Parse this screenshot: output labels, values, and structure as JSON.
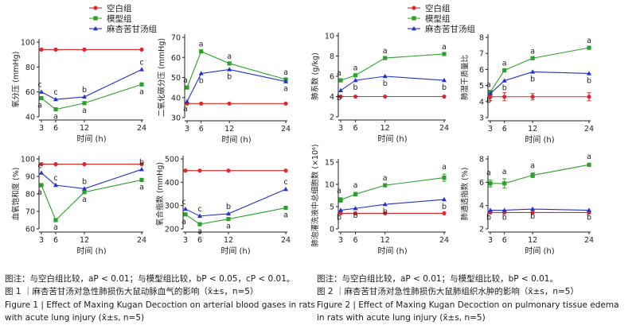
{
  "legend_labels": [
    "空白组",
    "模型组",
    "麻杏苦甘汤组"
  ],
  "colors": {
    "blank": "#e0282a",
    "model": "#2ca02c",
    "treat": "#2233cc"
  },
  "figure1": {
    "note": "图注：与空白组比较，aP < 0.01；与模型组比较，bP < 0.05，cP < 0.01。",
    "caption_cn": "图 1 ｜麻杏苦甘汤对急性肺损伤大鼠动脉血气的影响（x̄±s，n=5）",
    "caption_en_1": "Figure 1 | Effect of Maxing Kugan Decoction on arterial blood gases in rats",
    "caption_en_2": "with acute lung injury (x̄±s, n=5)"
  },
  "figure2": {
    "note": "图注：与空白组比较，aP < 0.01；与模型组比较，bP < 0.01。",
    "caption_cn": "图 2 ｜麻杏苦甘汤对急性肺损伤大鼠肺组织水肿的影响（x̄±s，n=5）",
    "caption_en_1": "Figure 2 | Effect of Maxing Kugan Decoction on pulmonary tissue edema",
    "caption_en_2": "in rats with acute lung injury (x̄±s, n=5)"
  },
  "chart_data": [
    {
      "type": "line",
      "xlabel": "时间 (h)",
      "ylabel": "氧分压 (mmHg)",
      "x": [
        3,
        6,
        12,
        24
      ],
      "xlim": [
        3,
        24
      ],
      "ylim": [
        40,
        100
      ],
      "yticks": [
        40,
        60,
        80,
        100
      ],
      "series": [
        {
          "name": "空白组",
          "values": [
            94,
            94,
            94,
            94
          ]
        },
        {
          "name": "模型组",
          "values": [
            55,
            46,
            51,
            66
          ],
          "labels": [
            "a",
            "a",
            "a",
            "a"
          ]
        },
        {
          "name": "麻杏苦甘汤组",
          "values": [
            60,
            54,
            56,
            78
          ],
          "labels": [
            "c",
            "c",
            "b",
            "c"
          ]
        }
      ]
    },
    {
      "type": "line",
      "xlabel": "时间 (h)",
      "ylabel": "二氧化碳分压 (mmHg)",
      "x": [
        3,
        6,
        12,
        24
      ],
      "xlim": [
        3,
        24
      ],
      "ylim": [
        30,
        70
      ],
      "yticks": [
        30,
        40,
        50,
        60,
        70
      ],
      "series": [
        {
          "name": "空白组",
          "values": [
            37,
            37,
            37,
            37
          ]
        },
        {
          "name": "模型组",
          "values": [
            45,
            63,
            57,
            49
          ],
          "labels": [
            "a",
            "a",
            "a",
            "a"
          ]
        },
        {
          "name": "麻杏苦甘汤组",
          "values": [
            38,
            52,
            54,
            48
          ],
          "labels": [
            "a",
            "b",
            "b",
            "a"
          ]
        }
      ]
    },
    {
      "type": "line",
      "xlabel": "时间 (h)",
      "ylabel": "血氧饱和度 (%)",
      "x": [
        3,
        6,
        12,
        24
      ],
      "xlim": [
        3,
        24
      ],
      "ylim": [
        60,
        100
      ],
      "yticks": [
        60,
        70,
        80,
        90,
        100
      ],
      "series": [
        {
          "name": "空白组",
          "values": [
            97,
            97,
            97,
            97
          ]
        },
        {
          "name": "模型组",
          "values": [
            85,
            65,
            81,
            88
          ],
          "labels": [
            "a",
            "a",
            "a",
            "a"
          ]
        },
        {
          "name": "麻杏苦甘汤组",
          "values": [
            92,
            85,
            83,
            94
          ],
          "labels": [
            "c",
            "c",
            "b",
            "b"
          ]
        }
      ]
    },
    {
      "type": "line",
      "xlabel": "时间 (h)",
      "ylabel": "氧合指数 (mmHg)",
      "x": [
        3,
        6,
        12,
        24
      ],
      "xlim": [
        3,
        24
      ],
      "ylim": [
        200,
        500
      ],
      "yticks": [
        200,
        300,
        400,
        500
      ],
      "series": [
        {
          "name": "空白组",
          "values": [
            450,
            450,
            450,
            450
          ]
        },
        {
          "name": "模型组",
          "values": [
            262,
            220,
            242,
            290
          ],
          "labels": [
            "a",
            "a",
            "a",
            "a"
          ]
        },
        {
          "name": "麻杏苦甘汤组",
          "values": [
            285,
            255,
            265,
            370
          ],
          "labels": [
            "c",
            "c",
            "b",
            "c"
          ]
        }
      ]
    },
    {
      "type": "line",
      "xlabel": "时间 (h)",
      "ylabel": "肺系数 (g/kg)",
      "x": [
        3,
        6,
        12,
        24
      ],
      "xlim": [
        3,
        24
      ],
      "ylim": [
        2,
        10
      ],
      "yticks": [
        2,
        4,
        6,
        8,
        10
      ],
      "series": [
        {
          "name": "空白组",
          "values": [
            4,
            4,
            4,
            4
          ]
        },
        {
          "name": "模型组",
          "values": [
            5.6,
            6.1,
            7.8,
            8.2
          ],
          "labels": [
            "a",
            "a",
            "a",
            "a"
          ]
        },
        {
          "name": "麻杏苦甘汤组",
          "values": [
            4.6,
            5.6,
            6.0,
            5.6
          ],
          "labels": [
            "b",
            "b",
            "b",
            "b"
          ]
        }
      ]
    },
    {
      "type": "line",
      "xlabel": "时间 (h)",
      "ylabel": "肺湿干质量比",
      "x": [
        3,
        6,
        12,
        24
      ],
      "xlim": [
        3,
        24
      ],
      "ylim": [
        3,
        8
      ],
      "yticks": [
        3,
        4,
        5,
        6,
        7,
        8
      ],
      "series": [
        {
          "name": "空白组",
          "values": [
            4.3,
            4.3,
            4.3,
            4.3
          ],
          "errors": [
            0.25,
            0.25,
            0.2,
            0.25
          ]
        },
        {
          "name": "模型组",
          "values": [
            4.6,
            5.95,
            6.7,
            7.35
          ],
          "labels": [
            "a",
            "a",
            "a",
            "a"
          ]
        },
        {
          "name": "麻杏苦甘汤组",
          "values": [
            4.5,
            5.3,
            5.85,
            5.75
          ],
          "labels": [
            "b",
            "b",
            "b",
            "b"
          ]
        }
      ]
    },
    {
      "type": "line",
      "xlabel": "时间 (h)",
      "ylabel": "肺泡灌洗液中总细胞数 (×10⁶)",
      "x": [
        3,
        6,
        12,
        24
      ],
      "xlim": [
        3,
        24
      ],
      "ylim": [
        0,
        15
      ],
      "yticks": [
        0,
        5,
        10,
        15
      ],
      "series": [
        {
          "name": "空白组",
          "values": [
            3.5,
            3.5,
            3.5,
            3.5
          ]
        },
        {
          "name": "模型组",
          "values": [
            6.5,
            7.8,
            9.8,
            11.5
          ],
          "labels": [
            "a",
            "a",
            "a",
            "a"
          ],
          "errors": [
            0.5,
            0.4,
            0,
            0.8
          ]
        },
        {
          "name": "麻杏苦甘汤组",
          "values": [
            4.2,
            4.6,
            5.5,
            6.6
          ],
          "labels": [
            "b",
            "b",
            "b",
            "b"
          ]
        }
      ]
    },
    {
      "type": "line",
      "xlabel": "时间 (h)",
      "ylabel": "肺通透指数 (%)",
      "x": [
        3,
        6,
        12,
        24
      ],
      "xlim": [
        3,
        24
      ],
      "ylim": [
        2,
        8
      ],
      "yticks": [
        2,
        4,
        6,
        8
      ],
      "series": [
        {
          "name": "空白组",
          "values": [
            3.4,
            3.4,
            3.4,
            3.4
          ]
        },
        {
          "name": "模型组",
          "values": [
            5.9,
            5.9,
            6.6,
            7.5
          ],
          "labels": [
            "a",
            "a",
            "a",
            "a"
          ],
          "errors": [
            0.3,
            0.4,
            0.2,
            0.1
          ]
        },
        {
          "name": "麻杏苦甘汤组",
          "values": [
            3.6,
            3.6,
            3.7,
            3.6
          ],
          "labels": [
            "b",
            "b",
            "b",
            "b"
          ]
        }
      ]
    }
  ]
}
